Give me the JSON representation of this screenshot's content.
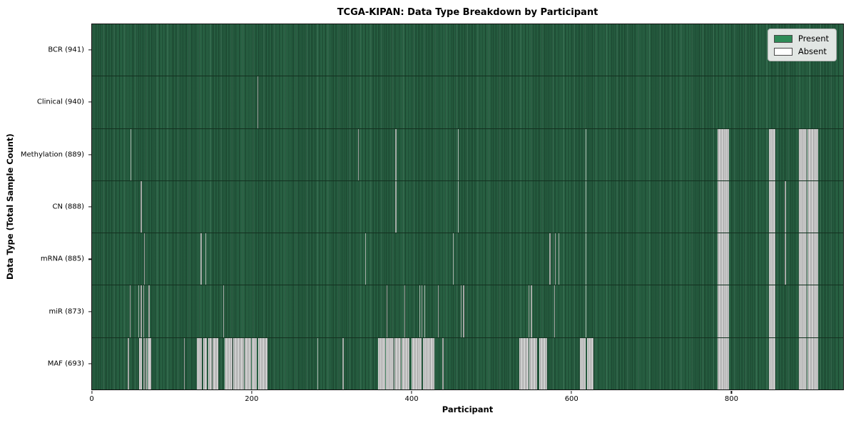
{
  "title": "TCGA-KIPAN: Data Type Breakdown by Participant",
  "xlabel": "Participant",
  "ylabel": "Data Type (Total Sample Count)",
  "legend": {
    "present_label": "Present",
    "absent_label": "Absent"
  },
  "colors": {
    "present": "#2e8b57",
    "absent": "#ffffff",
    "plot_green_dark": "#17422c",
    "plot_green_light": "#2d6b4b",
    "absent_stripe_gray": "#a4a9a5"
  },
  "chart_data": {
    "type": "heatmap",
    "title": "TCGA-KIPAN: Data Type Breakdown by Participant",
    "xlabel": "Participant",
    "ylabel": "Data Type (Total Sample Count)",
    "legend_entries": [
      "Present",
      "Absent"
    ],
    "legend_position": "upper right",
    "n_participants": 941,
    "x_ticks": [
      0,
      200,
      400,
      600,
      800
    ],
    "xlim": [
      0,
      941
    ],
    "rows": [
      {
        "key": "bcr",
        "label": "BCR (941)",
        "present_count": 941,
        "absent_segments": []
      },
      {
        "key": "clinical",
        "label": "Clinical (940)",
        "present_count": 940,
        "absent_segments": [
          [
            207,
            1.2
          ]
        ]
      },
      {
        "key": "methylation",
        "label": "Methylation (889)",
        "present_count": 889,
        "absent_segments": [
          [
            48,
            1.2
          ],
          [
            333,
            1.2
          ],
          [
            380,
            1.2
          ],
          [
            458,
            1.2
          ],
          [
            618,
            1.2
          ],
          [
            784,
            14
          ],
          [
            848,
            8
          ],
          [
            886,
            9
          ],
          [
            896,
            14
          ]
        ]
      },
      {
        "key": "cn",
        "label": "CN (888)",
        "present_count": 888,
        "absent_segments": [
          [
            61,
            2
          ],
          [
            380,
            1.2
          ],
          [
            458,
            1.2
          ],
          [
            618,
            1.2
          ],
          [
            868,
            1.2
          ],
          [
            784,
            14
          ],
          [
            848,
            8
          ],
          [
            886,
            9
          ],
          [
            896,
            14
          ]
        ]
      },
      {
        "key": "mrna",
        "label": "mRNA (885)",
        "present_count": 885,
        "absent_segments": [
          [
            65,
            1.2
          ],
          [
            136,
            1.2
          ],
          [
            142,
            1.2
          ],
          [
            342,
            1.2
          ],
          [
            452,
            1.2
          ],
          [
            573,
            1.2
          ],
          [
            580,
            1.2
          ],
          [
            584,
            1.2
          ],
          [
            618,
            1.2
          ],
          [
            868,
            1.2
          ],
          [
            784,
            14
          ],
          [
            848,
            8
          ],
          [
            886,
            9
          ],
          [
            896,
            14
          ]
        ]
      },
      {
        "key": "mir",
        "label": "miR (873)",
        "present_count": 873,
        "absent_segments": [
          [
            47,
            1.2
          ],
          [
            58,
            1.2
          ],
          [
            61,
            1.2
          ],
          [
            64,
            1.2
          ],
          [
            71,
            1.2
          ],
          [
            164,
            1.2
          ],
          [
            369,
            1.2
          ],
          [
            391,
            1.2
          ],
          [
            410,
            1.2
          ],
          [
            413,
            1.2
          ],
          [
            416,
            1.2
          ],
          [
            433,
            1.2
          ],
          [
            462,
            1.2
          ],
          [
            465,
            1.2
          ],
          [
            547,
            1.2
          ],
          [
            550,
            1.2
          ],
          [
            579,
            1.2
          ],
          [
            618,
            1.2
          ],
          [
            784,
            14
          ],
          [
            848,
            8
          ],
          [
            886,
            9
          ],
          [
            896,
            14
          ]
        ]
      },
      {
        "key": "maf",
        "label": "MAF (693)",
        "present_count": 693,
        "absent_segments": [
          [
            45,
            1.2
          ],
          [
            59,
            4
          ],
          [
            64,
            2
          ],
          [
            67,
            2
          ],
          [
            70,
            4
          ],
          [
            115,
            1.2
          ],
          [
            131,
            7
          ],
          [
            139,
            5
          ],
          [
            146,
            4
          ],
          [
            151,
            7
          ],
          [
            166,
            10
          ],
          [
            177,
            13
          ],
          [
            191,
            8
          ],
          [
            200,
            6
          ],
          [
            208,
            12
          ],
          [
            282,
            1.2
          ],
          [
            314,
            1.2
          ],
          [
            358,
            9
          ],
          [
            368,
            10
          ],
          [
            379,
            8
          ],
          [
            388,
            10
          ],
          [
            400,
            13
          ],
          [
            415,
            14
          ],
          [
            439,
            1.2
          ],
          [
            535,
            12
          ],
          [
            548,
            10
          ],
          [
            560,
            10
          ],
          [
            611,
            7
          ],
          [
            620,
            8
          ],
          [
            784,
            14
          ],
          [
            848,
            8
          ],
          [
            886,
            9
          ],
          [
            896,
            14
          ]
        ]
      }
    ]
  }
}
